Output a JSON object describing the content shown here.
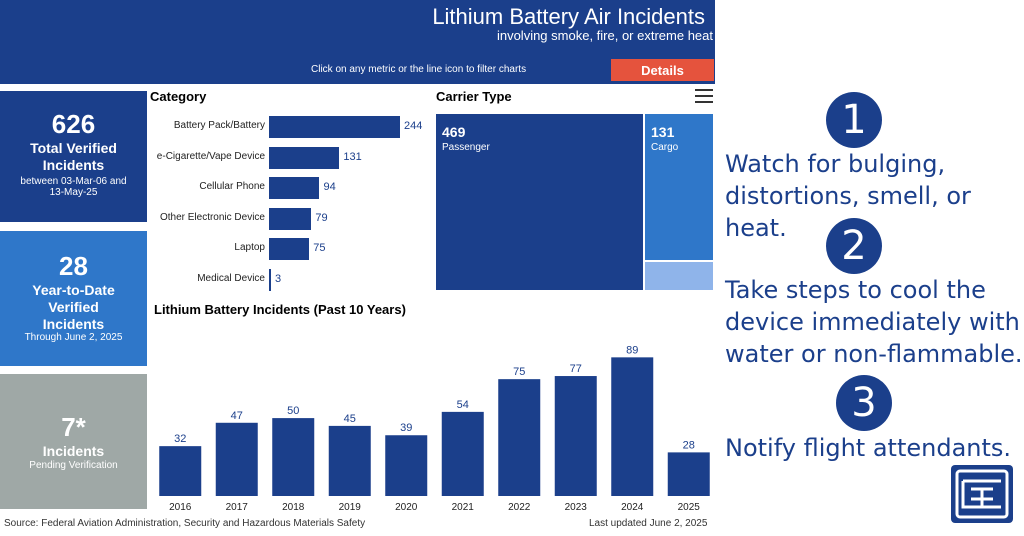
{
  "header": {
    "title": "Lithium Battery Air Incidents",
    "subtitle": "involving smoke, fire, or extreme heat",
    "hint": "Click on any metric or the line icon to filter charts",
    "details_label": "Details"
  },
  "kpis": [
    {
      "number": "626",
      "label": "Total Verified Incidents",
      "sub": "between 03-Mar-06 and 13-May-25"
    },
    {
      "number": "28",
      "label": "Year-to-Date Verified Incidents",
      "sub": "Through June 2, 2025"
    },
    {
      "number": "7*",
      "label": "Incidents",
      "sub": "Pending Verification"
    }
  ],
  "category": {
    "title": "Category",
    "items": [
      {
        "label": "Battery Pack/Battery",
        "value": 244
      },
      {
        "label": "e-Cigarette/Vape Device",
        "value": 131
      },
      {
        "label": "Cellular Phone",
        "value": 94
      },
      {
        "label": "Other Electronic Device",
        "value": 79
      },
      {
        "label": "Laptop",
        "value": 75
      },
      {
        "label": "Medical Device",
        "value": 3
      }
    ]
  },
  "carrier": {
    "title": "Carrier Type",
    "menu_icon": "hamburger-menu-icon",
    "passenger": {
      "value": "469",
      "label": "Passenger"
    },
    "cargo": {
      "value": "131",
      "label": "Cargo"
    }
  },
  "yearly": {
    "title": "Lithium Battery Incidents (Past 10 Years)"
  },
  "chart_data": {
    "type": "bar",
    "title": "Lithium Battery Incidents (Past 10 Years)",
    "categories": [
      "2016",
      "2017",
      "2018",
      "2019",
      "2020",
      "2021",
      "2022",
      "2023",
      "2024",
      "2025"
    ],
    "values": [
      32,
      47,
      50,
      45,
      39,
      54,
      75,
      77,
      89,
      28
    ],
    "ylim": [
      0,
      95
    ],
    "color": "#1b3f8b"
  },
  "footer": {
    "source": "Source: Federal Aviation Administration, Security and Hazardous Materials Safety",
    "updated": "Last updated June 2, 2025"
  },
  "steps": [
    {
      "num": "1",
      "text_line1": "Watch for bulging,",
      "text_line2": "distortions, smell, or heat."
    },
    {
      "num": "2",
      "text_line1": "Take steps to cool the",
      "text_line2": "device immediately with",
      "text_line3": "water or non-flammable."
    },
    {
      "num": "3",
      "text_line1": "Notify flight attendants."
    }
  ],
  "colors": {
    "navy": "#1b3f8b",
    "blue": "#2f77c9",
    "gray": "#9fa8a6",
    "red": "#e5533d",
    "light_blue": "#8fb4ea"
  }
}
